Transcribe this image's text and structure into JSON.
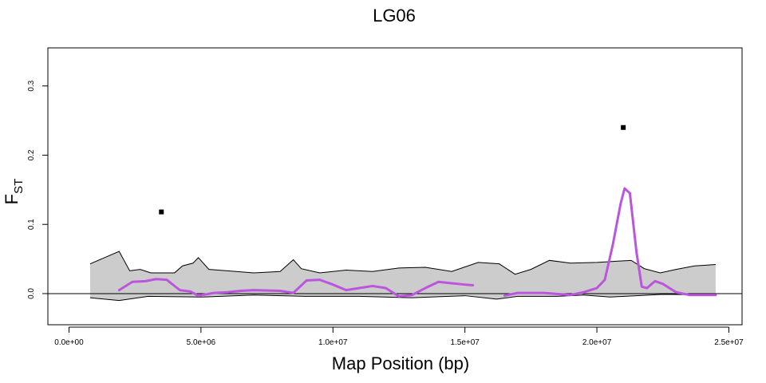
{
  "chart_data": {
    "type": "line",
    "title": "LG06",
    "xlabel": "Map Position (bp)",
    "ylabel_main": "F",
    "ylabel_sub": "ST",
    "xlim": [
      -800000,
      25500000
    ],
    "ylim": [
      -0.045,
      0.355
    ],
    "x_ticks": [
      0,
      5000000,
      10000000,
      15000000,
      20000000,
      25000000
    ],
    "x_tick_labels": [
      "0.0e+00",
      "5.0e+06",
      "1.0e+07",
      "1.5e+07",
      "2.0e+07",
      "2.5e+07"
    ],
    "y_ticks": [
      0.0,
      0.1,
      0.2,
      0.3
    ],
    "y_tick_labels": [
      "0.0",
      "0.1",
      "0.2",
      "0.3"
    ],
    "reference_line_y": 0,
    "colors": {
      "envelope_fill": "#cccccc",
      "envelope_stroke": "#000000",
      "fst_line": "#bb55dd",
      "outlier_points": "#000000"
    },
    "envelope": {
      "upper": [
        [
          800000,
          0.043
        ],
        [
          1900000,
          0.061
        ],
        [
          2300000,
          0.033
        ],
        [
          2700000,
          0.035
        ],
        [
          3100000,
          0.03
        ],
        [
          3600000,
          0.03
        ],
        [
          4000000,
          0.03
        ],
        [
          4300000,
          0.04
        ],
        [
          4700000,
          0.044
        ],
        [
          4900000,
          0.052
        ],
        [
          5300000,
          0.035
        ],
        [
          6000000,
          0.033
        ],
        [
          7000000,
          0.03
        ],
        [
          8000000,
          0.032
        ],
        [
          8500000,
          0.049
        ],
        [
          8800000,
          0.036
        ],
        [
          9500000,
          0.03
        ],
        [
          10500000,
          0.034
        ],
        [
          11500000,
          0.032
        ],
        [
          12500000,
          0.037
        ],
        [
          13500000,
          0.038
        ],
        [
          14500000,
          0.032
        ],
        [
          15500000,
          0.045
        ],
        [
          16300000,
          0.043
        ],
        [
          16900000,
          0.028
        ],
        [
          17500000,
          0.035
        ],
        [
          18200000,
          0.048
        ],
        [
          19000000,
          0.044
        ],
        [
          20000000,
          0.045
        ],
        [
          20800000,
          0.047
        ],
        [
          21300000,
          0.048
        ],
        [
          21800000,
          0.036
        ],
        [
          22400000,
          0.03
        ],
        [
          23000000,
          0.035
        ],
        [
          23700000,
          0.04
        ],
        [
          24500000,
          0.042
        ]
      ],
      "lower": [
        [
          800000,
          -0.006
        ],
        [
          1900000,
          -0.01
        ],
        [
          3000000,
          -0.004
        ],
        [
          5000000,
          -0.005
        ],
        [
          7000000,
          -0.002
        ],
        [
          9000000,
          -0.004
        ],
        [
          11000000,
          -0.004
        ],
        [
          13000000,
          -0.006
        ],
        [
          15000000,
          -0.003
        ],
        [
          16200000,
          -0.008
        ],
        [
          17000000,
          -0.004
        ],
        [
          18500000,
          -0.004
        ],
        [
          19500000,
          -0.002
        ],
        [
          20500000,
          -0.005
        ],
        [
          21500000,
          -0.003
        ],
        [
          22500000,
          -0.001
        ],
        [
          24500000,
          -0.002
        ]
      ]
    },
    "series": [
      {
        "values": [
          [
            1900000,
            0.005
          ],
          [
            2400000,
            0.017
          ],
          [
            2900000,
            0.018
          ],
          [
            3300000,
            0.021
          ],
          [
            3700000,
            0.02
          ],
          [
            4200000,
            0.005
          ],
          [
            4600000,
            0.003
          ],
          [
            4900000,
            -0.003
          ],
          [
            5500000,
            0.001
          ],
          [
            6000000,
            0.002
          ],
          [
            6500000,
            0.004
          ],
          [
            7000000,
            0.005
          ],
          [
            8000000,
            0.004
          ],
          [
            8500000,
            0.001
          ],
          [
            9000000,
            0.019
          ],
          [
            9500000,
            0.02
          ],
          [
            10000000,
            0.013
          ],
          [
            10500000,
            0.005
          ],
          [
            11000000,
            0.008
          ],
          [
            11500000,
            0.011
          ],
          [
            12000000,
            0.008
          ],
          [
            12500000,
            -0.004
          ],
          [
            13000000,
            -0.002
          ],
          [
            13500000,
            0.008
          ],
          [
            14000000,
            0.017
          ],
          [
            14500000,
            0.015
          ],
          [
            15000000,
            0.013
          ],
          [
            15300000,
            0.012
          ]
        ]
      },
      {
        "values": [
          [
            16500000,
            -0.003
          ],
          [
            17000000,
            0.001
          ],
          [
            18000000,
            0.001
          ],
          [
            19000000,
            -0.002
          ],
          [
            19500000,
            0.002
          ],
          [
            20000000,
            0.008
          ],
          [
            20300000,
            0.02
          ],
          [
            20600000,
            0.07
          ],
          [
            20900000,
            0.13
          ],
          [
            21050000,
            0.152
          ],
          [
            21250000,
            0.145
          ],
          [
            21500000,
            0.06
          ],
          [
            21700000,
            0.01
          ],
          [
            21900000,
            0.008
          ],
          [
            22200000,
            0.018
          ],
          [
            22500000,
            0.014
          ],
          [
            23000000,
            0.002
          ],
          [
            23500000,
            -0.002
          ],
          [
            24500000,
            -0.002
          ]
        ]
      }
    ],
    "outliers": [
      [
        3500000,
        0.118
      ],
      [
        21000000,
        0.24
      ]
    ]
  }
}
